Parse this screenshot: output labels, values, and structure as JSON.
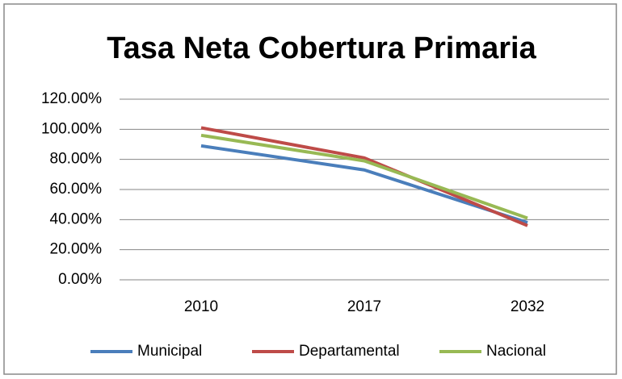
{
  "chart_data": {
    "type": "line",
    "title": "Tasa Neta Cobertura Primaria",
    "categories": [
      "2010",
      "2017",
      "2032"
    ],
    "series": [
      {
        "name": "Municipal",
        "color": "#4a7ebb",
        "values": [
          89,
          73,
          38
        ]
      },
      {
        "name": "Departamental",
        "color": "#be4b48",
        "values": [
          101,
          81,
          36
        ]
      },
      {
        "name": "Nacional",
        "color": "#98b954",
        "values": [
          96,
          79,
          41
        ]
      }
    ],
    "ylim": [
      0,
      120
    ],
    "yticks": [
      {
        "value": 0,
        "label": "0.00%"
      },
      {
        "value": 20,
        "label": "20.00%"
      },
      {
        "value": 40,
        "label": "40.00%"
      },
      {
        "value": 60,
        "label": "60.00%"
      },
      {
        "value": 80,
        "label": "80.00%"
      },
      {
        "value": 100,
        "label": "100.00%"
      },
      {
        "value": 120,
        "label": "120.00%"
      }
    ],
    "grid": true,
    "legend": "bottom"
  }
}
